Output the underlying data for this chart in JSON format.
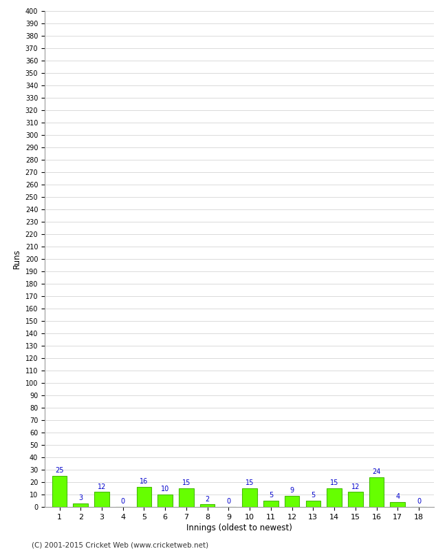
{
  "innings": [
    1,
    2,
    3,
    4,
    5,
    6,
    7,
    8,
    9,
    10,
    11,
    12,
    13,
    14,
    15,
    16,
    17,
    18
  ],
  "runs": [
    25,
    3,
    12,
    0,
    16,
    10,
    15,
    2,
    0,
    15,
    5,
    9,
    5,
    15,
    12,
    24,
    4,
    0
  ],
  "bar_color": "#66ff00",
  "bar_edge_color": "#44bb00",
  "label_color": "#0000cc",
  "xlabel": "Innings (oldest to newest)",
  "ylabel": "Runs",
  "ylim": [
    0,
    400
  ],
  "background_color": "#ffffff",
  "grid_color": "#cccccc",
  "footer": "(C) 2001-2015 Cricket Web (www.cricketweb.net)"
}
